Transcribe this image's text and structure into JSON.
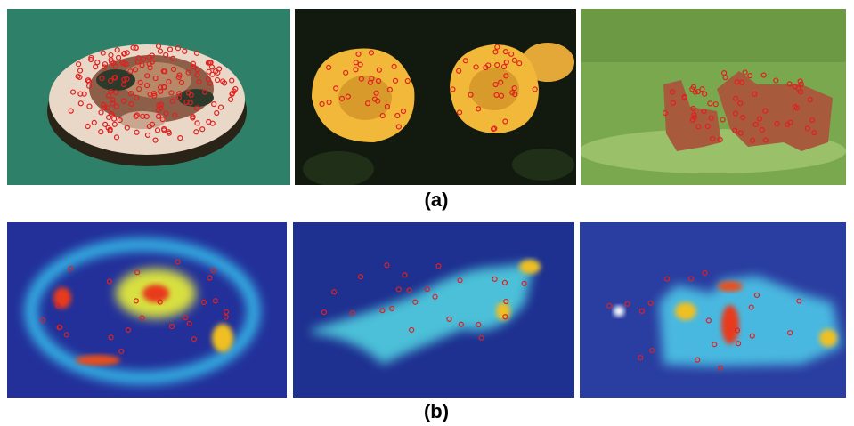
{
  "figure": {
    "captions": [
      "(a)",
      "(b)"
    ]
  }
}
